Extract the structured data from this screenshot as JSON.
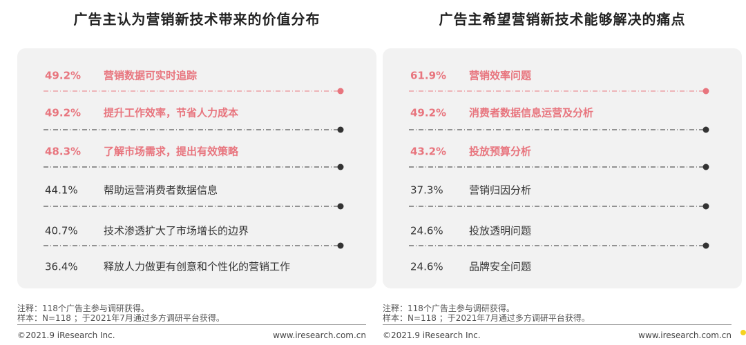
{
  "chart_data": [
    {
      "type": "bar",
      "title": "广告主认为营销新技术带来的价值分布",
      "unit": "%",
      "highlight_color": "#e8757e",
      "default_color": "#333333",
      "categories": [
        "营销数据可实时追踪",
        "提升工作效率，节省人力成本",
        "了解市场需求，提出有效策略",
        "帮助运营消费者数据信息",
        "技术渗透扩大了市场增长的边界",
        "释放人力做更有创意和个性化的营销工作"
      ],
      "values": [
        49.2,
        49.2,
        48.3,
        44.1,
        40.7,
        36.4
      ],
      "value_labels": [
        "49.2%",
        "49.2%",
        "48.3%",
        "44.1%",
        "40.7%",
        "36.4%"
      ],
      "highlighted": [
        true,
        true,
        true,
        false,
        false,
        false
      ]
    },
    {
      "type": "bar",
      "title": "广告主希望营销新技术能够解决的痛点",
      "unit": "%",
      "highlight_color": "#e8757e",
      "default_color": "#333333",
      "categories": [
        "营销效率问题",
        "消费者数据信息运营及分析",
        "投放预算分析",
        "营销归因分析",
        "投放透明问题",
        "品牌安全问题"
      ],
      "values": [
        61.9,
        49.2,
        43.2,
        37.3,
        24.6,
        24.6
      ],
      "value_labels": [
        "61.9%",
        "49.2%",
        "43.2%",
        "37.3%",
        "24.6%",
        "24.6%"
      ],
      "highlighted": [
        true,
        true,
        true,
        false,
        false,
        false
      ]
    }
  ],
  "notes": {
    "left": [
      "注释：118个广告主参与调研获得。",
      "样本：N=118 ；于2021年7月通过多方调研平台获得。"
    ],
    "right": [
      "注释：118个广告主参与调研获得。",
      "样本：N=118 ；于2021年7月通过多方调研平台获得。"
    ]
  },
  "footer": {
    "left": {
      "copyright": "©2021.9 iResearch Inc.",
      "website": "www.iresearch.com.cn"
    },
    "right": {
      "copyright": "©2021.9 iResearch Inc.",
      "website": "www.iresearch.com.cn"
    }
  }
}
